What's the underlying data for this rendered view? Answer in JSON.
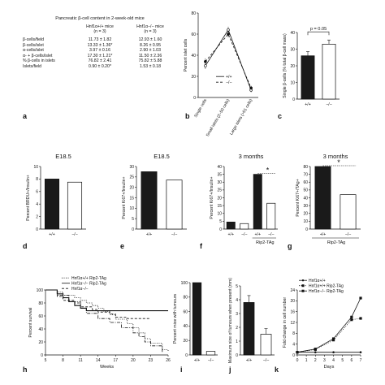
{
  "panels": {
    "a": {
      "letter": "a",
      "table": {
        "title": "Pancreatic β-cell content in 2-week-old mice",
        "col1": "Hnf1α+/+ mice",
        "col1_n": "(n = 3)",
        "col2": "Hnf1α−/− mice",
        "col2_n": "(n = 3)",
        "rows": [
          {
            "label": "β-cells/field",
            "v1": "11.73 ± 1.82",
            "v2": "12.93 ± 1.60"
          },
          {
            "label": "β-cells/islet",
            "v1": "13.33 ± 1.36*",
            "v2": "8.26 ± 0.95"
          },
          {
            "label": "α-cells/islet",
            "v1": "3.97 ± 0.16",
            "v2": "2.90 ± 1.03"
          },
          {
            "label": "α- + β-cells/islet",
            "v1": "17.30 ± 1.21*",
            "v2": "11.50 ± 2.36"
          },
          {
            "label": "% β-cells in islets",
            "v1": "76.82 ± 2.41",
            "v2": "75.82 ± 5.88"
          },
          {
            "label": "Islets/field",
            "v1": "0.90 ± 0.20*",
            "v2": "1.53 ± 0.18"
          }
        ]
      }
    },
    "b": {
      "letter": "b"
    },
    "c": {
      "letter": "c"
    },
    "d": {
      "letter": "d"
    },
    "e": {
      "letter": "e"
    },
    "f": {
      "letter": "f"
    },
    "g": {
      "letter": "g"
    },
    "h": {
      "letter": "h"
    },
    "i": {
      "letter": "i"
    },
    "j": {
      "letter": "j"
    },
    "k": {
      "letter": "k"
    }
  },
  "chart_data": [
    {
      "id": "b",
      "type": "line",
      "ylabel": "Percent islet cells",
      "categories": [
        "Single cells",
        "Small islets (2–50 cells)",
        "Large islets (>51 cells)"
      ],
      "ylim": [
        0,
        80
      ],
      "yticks": [
        0,
        20,
        40,
        60,
        80
      ],
      "series": [
        {
          "name": "+/+",
          "values": [
            30,
            64,
            7
          ],
          "err": [
            3,
            3,
            2
          ],
          "style": "solid",
          "marker": "circle-open"
        },
        {
          "name": "−/−",
          "values": [
            34,
            60,
            9
          ],
          "err": [
            3,
            3,
            2
          ],
          "style": "dashed",
          "marker": "circle-filled"
        }
      ]
    },
    {
      "id": "c",
      "type": "bar",
      "ylabel": "Single β-cells (% total β-cell mass)",
      "categories": [
        "+/+",
        "−/−"
      ],
      "values": [
        26,
        33
      ],
      "err": [
        2.5,
        2.5
      ],
      "ylim": [
        0,
        40
      ],
      "yticks": [
        0,
        10,
        20,
        30,
        40
      ],
      "fills": [
        "#1a1a1a",
        "#ffffff"
      ],
      "annotation": "p = 0.05"
    },
    {
      "id": "d",
      "type": "bar",
      "title": "E18.5",
      "ylabel": "Percent BRDU+/Insulin+",
      "categories": [
        "+/+",
        "−/−"
      ],
      "values": [
        8,
        7.5
      ],
      "ylim": [
        0,
        10
      ],
      "yticks": [
        0,
        2,
        4,
        6,
        8,
        10
      ],
      "fills": [
        "#1a1a1a",
        "#ffffff"
      ]
    },
    {
      "id": "e",
      "type": "bar",
      "title": "E18.5",
      "ylabel": "Percent Ki67+/Insulin+",
      "categories": [
        "+/+",
        "−/−"
      ],
      "values": [
        27.5,
        23.5
      ],
      "ylim": [
        0,
        30
      ],
      "yticks": [
        0,
        5,
        10,
        15,
        20,
        25,
        30
      ],
      "fills": [
        "#1a1a1a",
        "#ffffff"
      ]
    },
    {
      "id": "f",
      "type": "bar",
      "title": "3 months",
      "ylabel": "Percent Ki67+/Insulin+",
      "categories": [
        "+/+",
        "−/−",
        "+/+",
        "−/−"
      ],
      "group_label": "Rip2-TAg",
      "values": [
        4.5,
        3.5,
        35,
        16.5
      ],
      "ylim": [
        0,
        40
      ],
      "yticks": [
        0,
        5,
        10,
        15,
        20,
        25,
        30,
        35,
        40
      ],
      "fills": [
        "#1a1a1a",
        "#ffffff",
        "#1a1a1a",
        "#ffffff"
      ],
      "annotation": "*"
    },
    {
      "id": "g",
      "type": "bar",
      "title": "3 months",
      "ylabel": "Percent Ki67+/TAg+",
      "categories": [
        "+/+",
        "−/−"
      ],
      "group_label": "Rip2-TAg",
      "values": [
        80,
        44
      ],
      "ylim": [
        0,
        80
      ],
      "yticks": [
        0,
        10,
        20,
        30,
        40,
        50,
        60,
        70,
        80
      ],
      "fills": [
        "#1a1a1a",
        "#ffffff"
      ],
      "annotation": "*"
    },
    {
      "id": "h",
      "type": "line",
      "xlabel": "Weeks",
      "ylabel": "Percent survival",
      "xticks": [
        5,
        8,
        11,
        14,
        17,
        20,
        23,
        26
      ],
      "xlim": [
        5,
        26
      ],
      "ylim": [
        0,
        100
      ],
      "yticks": [
        0,
        20,
        40,
        60,
        80,
        100
      ],
      "series": [
        {
          "name": "Hnf1α+/+ Rip2-TAg",
          "style": "dotted",
          "x": [
            5,
            7,
            8,
            10,
            11,
            12,
            13,
            14,
            15,
            16,
            17,
            19,
            20,
            21,
            22,
            23,
            25,
            26
          ],
          "y": [
            100,
            97,
            92,
            88,
            84,
            80,
            76,
            72,
            67,
            62,
            55,
            48,
            42,
            34,
            25,
            18,
            8,
            5
          ]
        },
        {
          "name": "Hnf1α−/− Rip2-TAg",
          "style": "solid",
          "x": [
            5,
            7,
            8,
            9,
            10,
            11,
            12,
            26
          ],
          "y": [
            100,
            94,
            88,
            82,
            76,
            72,
            68,
            68
          ]
        },
        {
          "name": "Hnf1α−/−",
          "style": "dashed",
          "x": [
            5,
            7,
            8,
            10,
            11,
            13,
            14,
            16,
            17,
            19,
            23
          ],
          "y": [
            100,
            90,
            84,
            80,
            74,
            70,
            66,
            63,
            58,
            56,
            56
          ]
        },
        {
          "name": "",
          "style": "dashdot",
          "x": [
            5,
            7,
            9,
            11,
            12,
            14,
            16,
            18,
            20,
            21,
            22,
            23,
            25
          ],
          "y": [
            100,
            92,
            82,
            72,
            64,
            56,
            50,
            42,
            34,
            28,
            20,
            14,
            4
          ]
        }
      ]
    },
    {
      "id": "i",
      "type": "bar",
      "ylabel": "Percent mice with tumours",
      "categories": [
        "+/+",
        "−/−"
      ],
      "values": [
        100,
        5
      ],
      "ylim": [
        0,
        100
      ],
      "yticks": [
        0,
        20,
        40,
        60,
        80,
        100
      ],
      "fills": [
        "#1a1a1a",
        "#ffffff"
      ]
    },
    {
      "id": "j",
      "type": "bar",
      "ylabel": "Maximum size of tumours when present (mm)",
      "categories": [
        "+/+",
        "−/−"
      ],
      "values": [
        3.8,
        1.5
      ],
      "err": [
        0.5,
        0.4
      ],
      "ylim": [
        0,
        5
      ],
      "yticks": [
        0,
        1,
        2,
        3,
        4,
        5
      ],
      "fills": [
        "#1a1a1a",
        "#ffffff"
      ]
    },
    {
      "id": "k",
      "type": "line",
      "xlabel": "Days",
      "ylabel": "Fold change in cell number",
      "xticks": [
        0,
        1,
        2,
        3,
        4,
        5,
        6,
        7
      ],
      "xlim": [
        0,
        7
      ],
      "ylim": [
        0,
        24
      ],
      "yticks": [
        0,
        4,
        8,
        12,
        16,
        20,
        24
      ],
      "series": [
        {
          "name": "Hnf1α+/+",
          "style": "solid",
          "marker": "star",
          "x": [
            0,
            2,
            4,
            7
          ],
          "y": [
            1,
            1,
            1,
            1
          ]
        },
        {
          "name": "Hnf1α+/+ Rip2-TAg",
          "style": "dotted",
          "marker": "square",
          "x": [
            0,
            2,
            4,
            6,
            7
          ],
          "y": [
            1,
            2,
            5.5,
            13,
            13.5
          ]
        },
        {
          "name": "Hnf1α−/− Rip2-TAg",
          "style": "solid",
          "marker": "square",
          "x": [
            0,
            2,
            4,
            6,
            7
          ],
          "y": [
            1,
            2.2,
            6,
            14,
            21
          ]
        }
      ]
    }
  ]
}
